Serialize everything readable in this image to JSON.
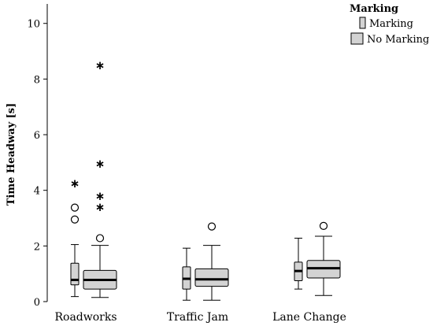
{
  "chart_data": {
    "type": "boxplot",
    "ylabel": "Time Headway [s]",
    "xlabel": "",
    "ylim": [
      0,
      10.7
    ],
    "yticks": [
      0,
      2,
      4,
      6,
      8,
      10
    ],
    "categories": [
      "Roadworks",
      "Traffic Jam",
      "Lane Change"
    ],
    "legend": {
      "title": "Marking",
      "placement": "top-right",
      "entries": [
        "Marking",
        "No Marking"
      ]
    },
    "series": [
      {
        "name": "Marking",
        "boxes": [
          {
            "category": "Roadworks",
            "whisker_low": 0.18,
            "q1": 0.6,
            "median": 0.78,
            "q3": 1.38,
            "whisker_high": 2.05,
            "outliers": [
              2.95,
              3.38
            ],
            "extremes": [
              4.28
            ]
          },
          {
            "category": "Traffic Jam",
            "whisker_low": 0.05,
            "q1": 0.45,
            "median": 0.82,
            "q3": 1.25,
            "whisker_high": 1.92,
            "outliers": [],
            "extremes": []
          },
          {
            "category": "Lane Change",
            "whisker_low": 0.45,
            "q1": 0.75,
            "median": 1.1,
            "q3": 1.42,
            "whisker_high": 2.28,
            "outliers": [],
            "extremes": []
          }
        ]
      },
      {
        "name": "No Marking",
        "boxes": [
          {
            "category": "Roadworks",
            "whisker_low": 0.15,
            "q1": 0.45,
            "median": 0.78,
            "q3": 1.12,
            "whisker_high": 2.02,
            "outliers": [
              2.28
            ],
            "extremes": [
              3.42,
              3.82,
              4.98,
              8.52
            ]
          },
          {
            "category": "Traffic Jam",
            "whisker_low": 0.05,
            "q1": 0.55,
            "median": 0.8,
            "q3": 1.18,
            "whisker_high": 2.02,
            "outliers": [
              2.7
            ],
            "extremes": []
          },
          {
            "category": "Lane Change",
            "whisker_low": 0.22,
            "q1": 0.85,
            "median": 1.2,
            "q3": 1.48,
            "whisker_high": 2.35,
            "outliers": [
              2.72
            ],
            "extremes": []
          }
        ]
      }
    ],
    "grid": false
  }
}
